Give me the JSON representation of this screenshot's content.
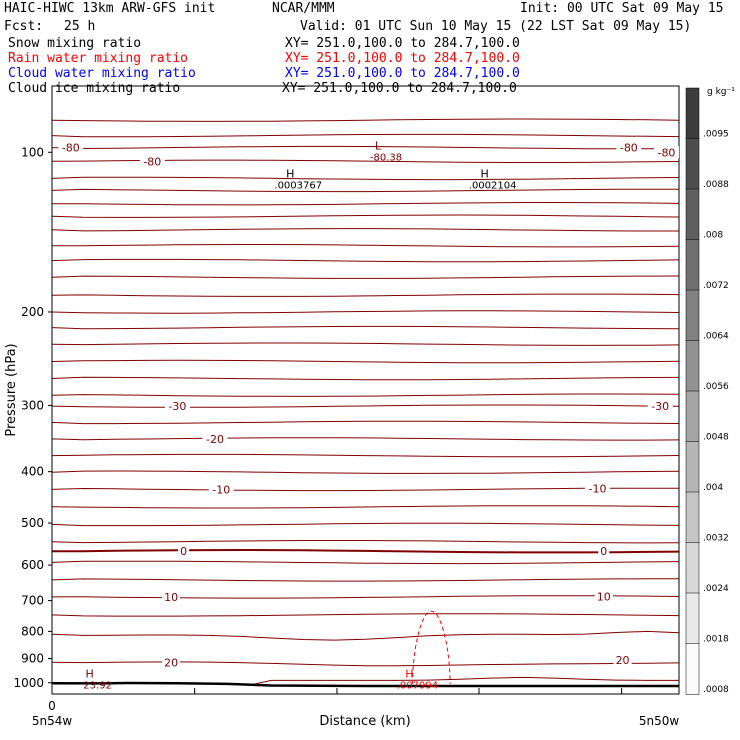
{
  "header": {
    "title_left": "HAIC-HIWC 13km ARW-GFS init",
    "org": "NCAR/MMM",
    "init": "Init: 00 UTC Sat 09 May 15",
    "fcst_label": "Fcst:",
    "fcst_value": "25 h",
    "valid": "Valid: 01 UTC Sun 10 May 15 (22 LST Sat 09 May 15)"
  },
  "fields": [
    {
      "name": "Snow mixing ratio",
      "xy": "XY= 251.0,100.0 to 284.7,100.0",
      "color": "#000000"
    },
    {
      "name": "Rain water mixing ratio",
      "xy": "XY= 251.0,100.0 to 284.7,100.0",
      "color": "#ff0000"
    },
    {
      "name": "Cloud water mixing ratio",
      "xy": "XY= 251.0,100.0 to 284.7,100.0",
      "color": "#0000ff"
    },
    {
      "name": "Cloud ice mixing ratio",
      "xy": "XY= 251.0,100.0 to 284.7,100.0",
      "color": "#000000"
    }
  ],
  "chart_data": {
    "type": "line",
    "ylabel": "Pressure (hPa)",
    "xlabel": "Distance (km)",
    "y_scale": "log",
    "ylim": [
      1050,
      75
    ],
    "y_ticks": [
      100,
      200,
      300,
      400,
      500,
      600,
      700,
      800,
      900,
      1000
    ],
    "x_tick_label": "0",
    "x_left_label": "5n54w",
    "x_right_label": "5n50w",
    "contour_color": "#800000",
    "rain_color": "#ff0000",
    "temperature_contour_labels": [
      {
        "text": "-80",
        "p": 98,
        "x": 0.03
      },
      {
        "text": "-80",
        "p": 104,
        "x": 0.16
      },
      {
        "text": "-80",
        "p": 98,
        "x": 0.92
      },
      {
        "text": "-80",
        "p": 100,
        "x": 0.98
      },
      {
        "text": "-30",
        "p": 301,
        "x": 0.2
      },
      {
        "text": "-30",
        "p": 301,
        "x": 0.97
      },
      {
        "text": "-20",
        "p": 347,
        "x": 0.26
      },
      {
        "text": "-10",
        "p": 432,
        "x": 0.27
      },
      {
        "text": "-10",
        "p": 430,
        "x": 0.87
      },
      {
        "text": "0",
        "p": 565,
        "x": 0.21
      },
      {
        "text": "0",
        "p": 564,
        "x": 0.88
      },
      {
        "text": "10",
        "p": 689,
        "x": 0.19
      },
      {
        "text": "10",
        "p": 688,
        "x": 0.88
      },
      {
        "text": "20",
        "p": 915,
        "x": 0.19
      },
      {
        "text": "20",
        "p": 906,
        "x": 0.91
      }
    ],
    "extrema": [
      {
        "type": "L",
        "value": "-80.38",
        "p": 100,
        "x": 0.52,
        "color": "#800000"
      },
      {
        "type": "H",
        "value": ".0003767",
        "p": 113,
        "x": 0.38,
        "color": "#000000"
      },
      {
        "type": "H",
        "value": ".0002104",
        "p": 113,
        "x": 0.69,
        "color": "#000000"
      },
      {
        "type": "H",
        "value": "23.92",
        "p": 990,
        "x": 0.06,
        "color": "#800000"
      },
      {
        "type": "H",
        "value": ".007994",
        "p": 990,
        "x": 0.57,
        "color": "#ff0000"
      }
    ],
    "terrain_p": [
      [
        0.0,
        1002
      ],
      [
        0.08,
        1003
      ],
      [
        0.12,
        1001
      ],
      [
        0.2,
        1002
      ],
      [
        0.28,
        1005
      ],
      [
        0.35,
        1012
      ],
      [
        0.5,
        1014
      ],
      [
        0.75,
        1014
      ],
      [
        1.0,
        1014
      ]
    ],
    "colorbar": {
      "unit": "g kg⁻¹",
      "labels": [
        ".0095",
        ".0088",
        ".008",
        ".0072",
        ".0064",
        ".0056",
        ".0048",
        ".004",
        ".0032",
        ".0024",
        ".0018",
        ".0008"
      ]
    }
  }
}
